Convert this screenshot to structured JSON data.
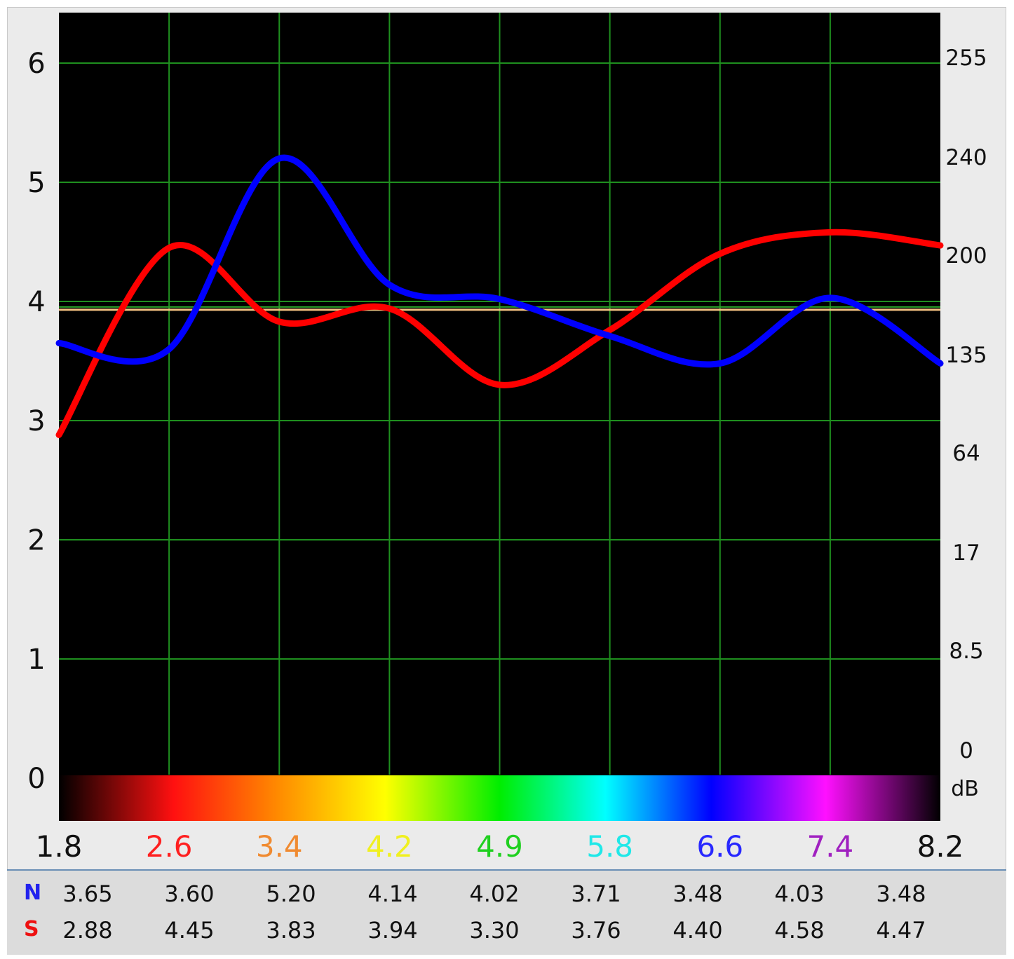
{
  "chart_data": {
    "type": "line",
    "x_ticks": [
      "1.8",
      "2.6",
      "3.4",
      "4.2",
      "4.9",
      "5.8",
      "6.6",
      "7.4",
      "8.2"
    ],
    "x_tick_colors": [
      "#111111",
      "#ff2020",
      "#f08a30",
      "#f0f020",
      "#20d020",
      "#20e8e8",
      "#2828ff",
      "#a020c0",
      "#111111"
    ],
    "y_left_ticks": [
      "6",
      "5",
      "4",
      "3",
      "2",
      "1",
      "0"
    ],
    "y_right_ticks": [
      "255",
      "240",
      "200",
      "135",
      "64",
      "17",
      "8.5",
      "0"
    ],
    "y_right_unit": "dB",
    "y_range": [
      0,
      6.5
    ],
    "reference_line": 3.93,
    "series": [
      {
        "name": "N",
        "color": "#0000ff",
        "values": [
          3.65,
          3.6,
          5.2,
          4.14,
          4.02,
          3.71,
          3.48,
          4.03,
          3.48
        ]
      },
      {
        "name": "S",
        "color": "#ff0000",
        "values": [
          2.88,
          4.45,
          3.83,
          3.94,
          3.3,
          3.76,
          4.4,
          4.58,
          4.47
        ]
      }
    ],
    "colorbar": true,
    "grid": true
  },
  "table": {
    "rows": [
      {
        "label": "N",
        "color": "#2222ee",
        "values": [
          "3.65",
          "3.60",
          "5.20",
          "4.14",
          "4.02",
          "3.71",
          "3.48",
          "4.03",
          "3.48"
        ]
      },
      {
        "label": "S",
        "color": "#ee1111",
        "values": [
          "2.88",
          "4.45",
          "3.83",
          "3.94",
          "3.30",
          "3.76",
          "4.40",
          "4.58",
          "4.47"
        ]
      }
    ]
  }
}
